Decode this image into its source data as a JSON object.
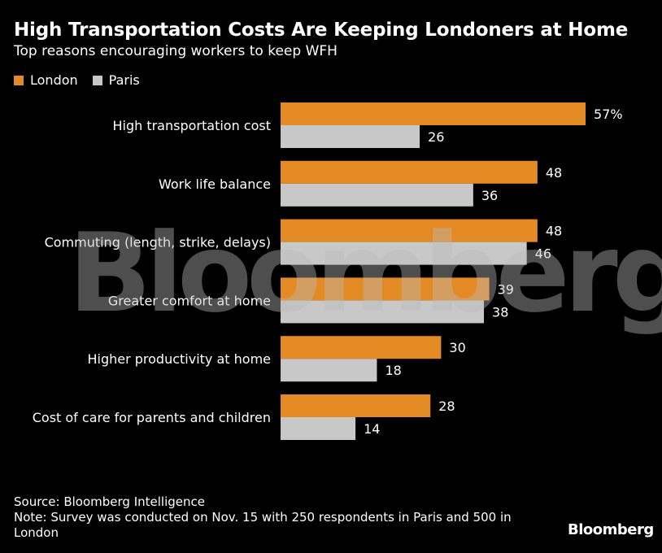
{
  "title": "High Transportation Costs Are Keeping Londoners at Home",
  "subtitle": "Top reasons encouraging workers to keep WFH",
  "legend": [
    {
      "label": "London",
      "color": "#e38a24"
    },
    {
      "label": "Paris",
      "color": "#c8c8c8"
    }
  ],
  "chart_data": {
    "type": "bar",
    "orientation": "horizontal",
    "categories": [
      "High transportation cost",
      "Work life balance",
      "Commuting (length, strike, delays)",
      "Greater comfort at home",
      "Higher productivity at home",
      "Cost of care for parents and children"
    ],
    "series": [
      {
        "name": "London",
        "color": "#e38a24",
        "values": [
          57,
          48,
          48,
          39,
          30,
          28
        ],
        "labels": [
          "57%",
          "48",
          "48",
          "39",
          "30",
          "28"
        ]
      },
      {
        "name": "Paris",
        "color": "#c8c8c8",
        "values": [
          26,
          36,
          46,
          38,
          18,
          14
        ],
        "labels": [
          "26",
          "36",
          "46",
          "38",
          "18",
          "14"
        ]
      }
    ],
    "xlim": [
      0,
      60
    ],
    "legend_position": "top-left",
    "grid": false
  },
  "footer": {
    "source": "Source: Bloomberg Intelligence",
    "note": "Note: Survey was conducted on Nov. 15 with 250 respondents in Paris and 500 in London"
  },
  "watermark": "Bloomberg",
  "logo": "Bloomberg"
}
